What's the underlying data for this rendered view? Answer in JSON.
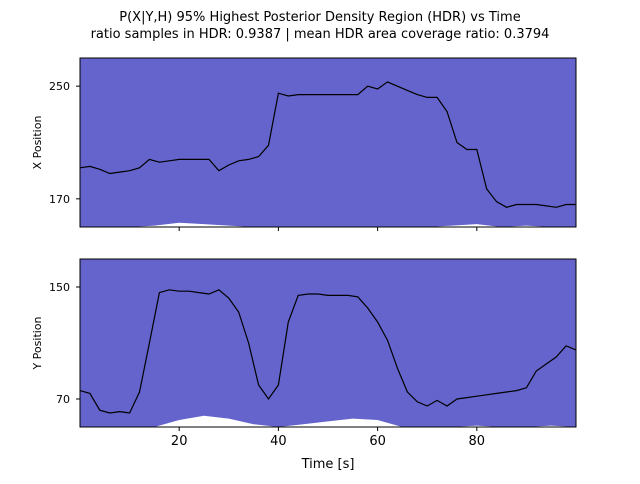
{
  "figure": {
    "title_line1": "P(X|Y,H) 95% Highest Posterior Density Region (HDR) vs Time",
    "title_line2": "ratio samples in HDR: 0.9387 | mean HDR area coverage ratio: 0.3794",
    "xlabel": "Time [s]"
  },
  "colors": {
    "hdr_fill": "#6464cc",
    "trace": "#000000",
    "axes": "#000000"
  },
  "chart_data": [
    {
      "type": "area",
      "name": "x-panel",
      "ylabel": "X Position",
      "xlim": [
        0,
        100
      ],
      "ylim": [
        150,
        270
      ],
      "x_ticks": [
        20,
        40,
        60,
        80
      ],
      "y_ticks": [
        170,
        250
      ],
      "x_tick_labels_visible": false,
      "series": [
        {
          "role": "hdr-band",
          "x": [
            0,
            5,
            10,
            15,
            20,
            25,
            30,
            35,
            40,
            45,
            50,
            55,
            60,
            65,
            70,
            75,
            80,
            85,
            90,
            95,
            100
          ],
          "lower": [
            150,
            150,
            150,
            151,
            153,
            152,
            151,
            150,
            150,
            150,
            150,
            150,
            150,
            150,
            150,
            151,
            152,
            150,
            151,
            150,
            150
          ],
          "upper": [
            270,
            270,
            270,
            270,
            270,
            270,
            270,
            270,
            270,
            270,
            270,
            270,
            270,
            270,
            270,
            270,
            270,
            270,
            270,
            270,
            270
          ]
        },
        {
          "role": "map-estimate",
          "x": [
            0,
            2,
            4,
            6,
            8,
            10,
            12,
            14,
            16,
            18,
            20,
            22,
            24,
            26,
            28,
            30,
            32,
            34,
            36,
            38,
            40,
            42,
            44,
            46,
            48,
            50,
            52,
            54,
            56,
            58,
            60,
            62,
            64,
            66,
            68,
            70,
            72,
            74,
            76,
            78,
            80,
            82,
            84,
            86,
            88,
            90,
            92,
            94,
            96,
            98,
            100
          ],
          "y": [
            192,
            193,
            191,
            188,
            189,
            190,
            192,
            198,
            196,
            197,
            198,
            198,
            198,
            198,
            190,
            194,
            197,
            198,
            200,
            208,
            245,
            243,
            244,
            244,
            244,
            244,
            244,
            244,
            244,
            250,
            248,
            253,
            250,
            247,
            244,
            242,
            242,
            232,
            210,
            205,
            205,
            177,
            168,
            164,
            166,
            166,
            166,
            165,
            164,
            166,
            166
          ]
        }
      ]
    },
    {
      "type": "area",
      "name": "y-panel",
      "ylabel": "Y Position",
      "xlim": [
        0,
        100
      ],
      "ylim": [
        50,
        170
      ],
      "x_ticks": [
        20,
        40,
        60,
        80
      ],
      "y_ticks": [
        70,
        150
      ],
      "x_tick_labels": [
        "20",
        "40",
        "60",
        "80"
      ],
      "series": [
        {
          "role": "hdr-band",
          "x": [
            0,
            5,
            10,
            15,
            20,
            25,
            30,
            35,
            40,
            45,
            50,
            55,
            60,
            65,
            70,
            75,
            80,
            85,
            90,
            95,
            100
          ],
          "lower": [
            50,
            50,
            50,
            50,
            55,
            58,
            56,
            52,
            50,
            52,
            54,
            56,
            55,
            50,
            50,
            50,
            51,
            50,
            50,
            51,
            50
          ],
          "upper": [
            170,
            170,
            170,
            170,
            170,
            170,
            170,
            170,
            170,
            170,
            170,
            170,
            170,
            170,
            170,
            170,
            170,
            170,
            170,
            170,
            170
          ]
        },
        {
          "role": "map-estimate",
          "x": [
            0,
            2,
            4,
            6,
            8,
            10,
            12,
            14,
            16,
            18,
            20,
            22,
            24,
            26,
            28,
            30,
            32,
            34,
            36,
            38,
            40,
            42,
            44,
            46,
            48,
            50,
            52,
            54,
            56,
            58,
            60,
            62,
            64,
            66,
            68,
            70,
            72,
            74,
            76,
            78,
            80,
            82,
            84,
            86,
            88,
            90,
            92,
            94,
            96,
            98,
            100
          ],
          "y": [
            76,
            74,
            62,
            60,
            61,
            60,
            75,
            110,
            146,
            148,
            147,
            147,
            146,
            145,
            148,
            142,
            132,
            110,
            80,
            70,
            80,
            125,
            144,
            145,
            145,
            144,
            144,
            144,
            143,
            135,
            125,
            112,
            92,
            75,
            68,
            65,
            69,
            65,
            70,
            71,
            72,
            73,
            74,
            75,
            76,
            78,
            90,
            95,
            100,
            108,
            105
          ]
        }
      ]
    }
  ]
}
